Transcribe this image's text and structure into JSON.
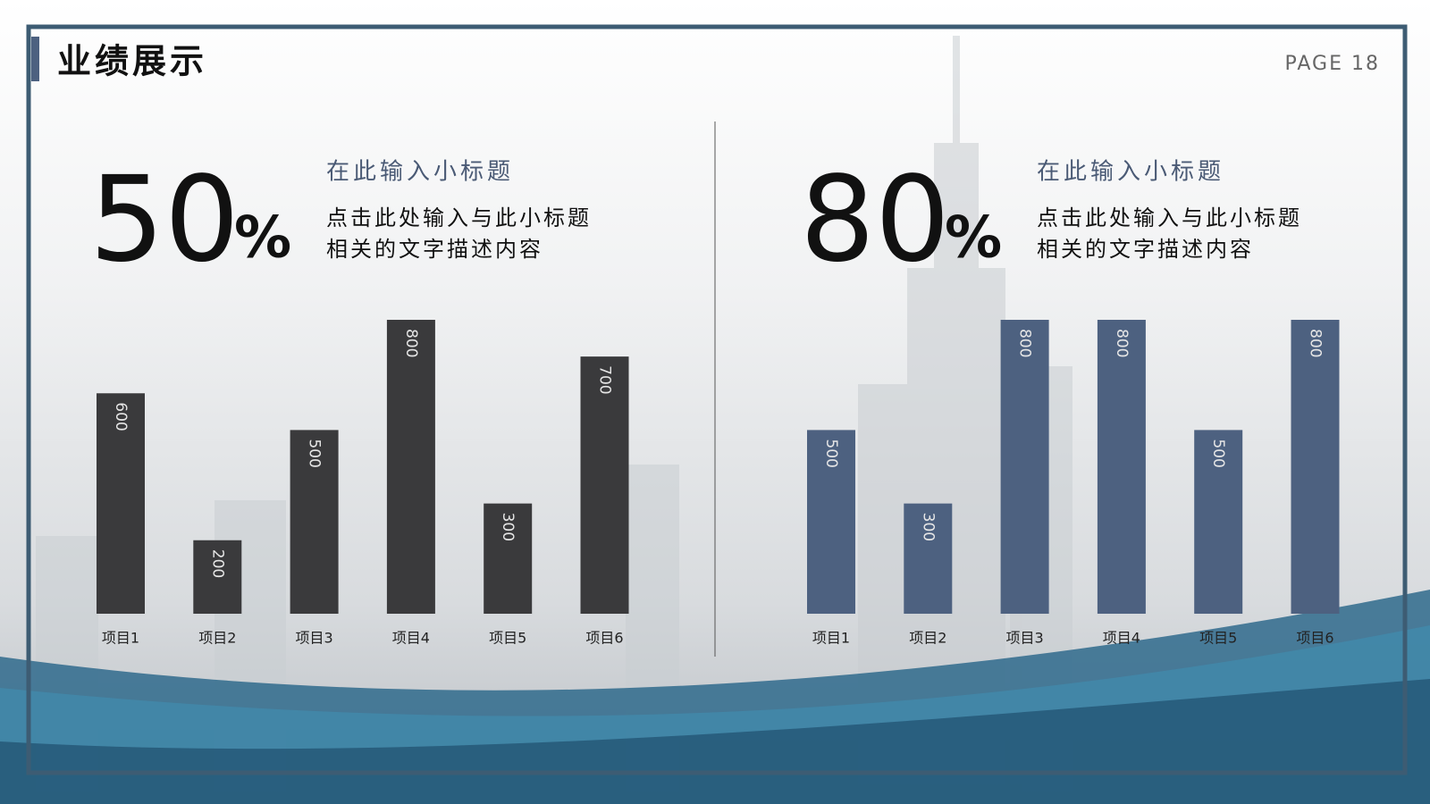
{
  "header": {
    "title": "业绩展示",
    "page": "PAGE 18"
  },
  "panels": [
    {
      "stat_number": "50",
      "stat_unit": "%",
      "subtitle": "在此输入小标题",
      "description": [
        "点击此处输入与此小标题",
        "相关的文字描述内容"
      ]
    },
    {
      "stat_number": "80",
      "stat_unit": "%",
      "subtitle": "在此输入小标题",
      "description": [
        "点击此处输入与此小标题",
        "相关的文字描述内容"
      ]
    }
  ],
  "chart_data": [
    {
      "type": "bar",
      "categories": [
        "项目1",
        "项目2",
        "项目3",
        "项目4",
        "项目5",
        "项目6"
      ],
      "values": [
        600,
        200,
        500,
        800,
        300,
        700
      ],
      "color": "#3a3a3c"
    },
    {
      "type": "bar",
      "categories": [
        "项目1",
        "项目2",
        "项目3",
        "项目4",
        "项目5",
        "项目6"
      ],
      "values": [
        500,
        300,
        800,
        800,
        500,
        800
      ],
      "color": "#4d6180"
    }
  ]
}
